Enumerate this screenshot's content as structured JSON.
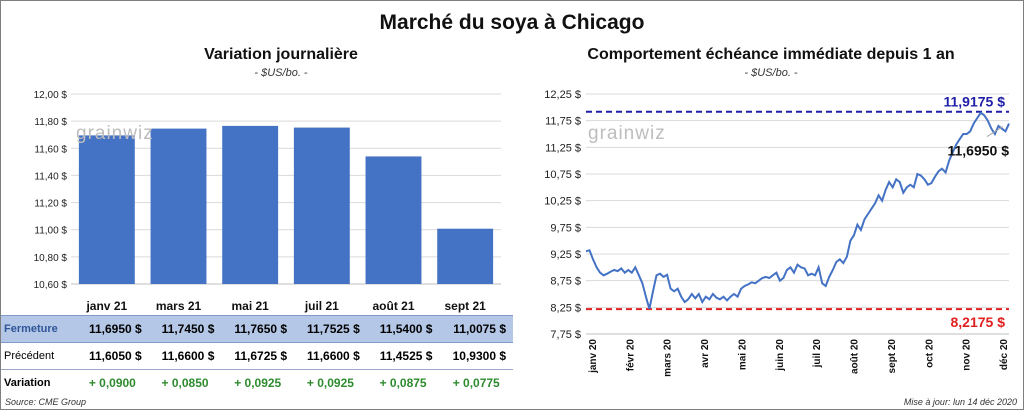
{
  "title": "Marché du soya à Chicago",
  "chart_data": [
    {
      "type": "bar",
      "title": "Variation journalière",
      "subtitle": "- $US/bo. -",
      "categories": [
        "janv 21",
        "mars 21",
        "mai 21",
        "juil 21",
        "août 21",
        "sept 21"
      ],
      "values": [
        11.695,
        11.745,
        11.765,
        11.7525,
        11.54,
        11.0075
      ],
      "ylim": [
        10.6,
        12.0
      ],
      "yticks": [
        "10,60 $",
        "10,80 $",
        "11,00 $",
        "11,20 $",
        "11,40 $",
        "11,60 $",
        "11,80 $",
        "12,00 $"
      ],
      "ytick_values": [
        10.6,
        10.8,
        11.0,
        11.2,
        11.4,
        11.6,
        11.8,
        12.0
      ],
      "bar_color": "#4472c4",
      "grid": true,
      "watermark": "grainwiz"
    },
    {
      "type": "line",
      "title": "Comportement échéance immédiate depuis 1 an",
      "subtitle": "- $US/bo. -",
      "ylim": [
        7.75,
        12.25
      ],
      "yticks": [
        "7,75 $",
        "8,25 $",
        "8,75 $",
        "9,25 $",
        "9,75 $",
        "10,25 $",
        "10,75 $",
        "11,25 $",
        "11,75 $",
        "12,25 $"
      ],
      "ytick_values": [
        7.75,
        8.25,
        8.75,
        9.25,
        9.75,
        10.25,
        10.75,
        11.25,
        11.75,
        12.25
      ],
      "xticks": [
        "janv 20",
        "févr 20",
        "mars 20",
        "avr 20",
        "mai 20",
        "juin 20",
        "juil 20",
        "août 20",
        "sept 20",
        "oct 20",
        "nov 20",
        "déc 20"
      ],
      "x": [
        0,
        2,
        4,
        6,
        8,
        10,
        12,
        14,
        16,
        18,
        20,
        22,
        24,
        26,
        28,
        30,
        32,
        34,
        36,
        38,
        40,
        42,
        44,
        46,
        48,
        50,
        52,
        54,
        56,
        58,
        60,
        62,
        64,
        66,
        68,
        70,
        72,
        74,
        76,
        78,
        80,
        82,
        84,
        86,
        88,
        90,
        92,
        94,
        96,
        98,
        100,
        102,
        104,
        106,
        108,
        110,
        112,
        114,
        116,
        118,
        120,
        122,
        124,
        126,
        128,
        130,
        132,
        134,
        136,
        138,
        140,
        142,
        144,
        146,
        148,
        150,
        152,
        154,
        156,
        158,
        160,
        162,
        164,
        166,
        168,
        170,
        172,
        174,
        176,
        178,
        180,
        182,
        184,
        186,
        188,
        190,
        192,
        194,
        196,
        198,
        200,
        202,
        204,
        206,
        208,
        210,
        212,
        214,
        216,
        218,
        220,
        222,
        224,
        226,
        228,
        230,
        232,
        234,
        236,
        238,
        240
      ],
      "values": [
        9.3,
        9.32,
        9.15,
        9.0,
        8.9,
        8.85,
        8.88,
        8.92,
        8.95,
        8.93,
        8.98,
        8.9,
        8.95,
        8.9,
        9.0,
        8.85,
        8.7,
        8.45,
        8.22,
        8.55,
        8.85,
        8.88,
        8.82,
        8.86,
        8.6,
        8.55,
        8.6,
        8.45,
        8.35,
        8.4,
        8.5,
        8.42,
        8.5,
        8.35,
        8.45,
        8.4,
        8.5,
        8.43,
        8.4,
        8.45,
        8.38,
        8.45,
        8.5,
        8.45,
        8.6,
        8.65,
        8.68,
        8.72,
        8.7,
        8.75,
        8.8,
        8.82,
        8.8,
        8.85,
        8.9,
        8.75,
        8.8,
        8.95,
        9.0,
        8.9,
        9.05,
        9.0,
        8.98,
        8.85,
        8.88,
        8.85,
        9.0,
        8.7,
        8.65,
        8.82,
        8.95,
        9.1,
        9.15,
        9.08,
        9.2,
        9.5,
        9.6,
        9.8,
        9.7,
        9.9,
        10.0,
        10.1,
        10.2,
        10.35,
        10.25,
        10.45,
        10.6,
        10.5,
        10.65,
        10.6,
        10.4,
        10.5,
        10.55,
        10.5,
        10.75,
        10.72,
        10.65,
        10.55,
        10.58,
        10.7,
        10.8,
        10.85,
        10.78,
        11.0,
        11.15,
        11.3,
        11.4,
        11.5,
        11.5,
        11.55,
        11.7,
        11.8,
        11.9,
        11.85,
        11.75,
        11.6,
        11.5,
        11.65,
        11.6,
        11.55,
        11.695
      ],
      "line_color": "#4472c4",
      "reference_lines": [
        {
          "value": 11.9175,
          "label": "11,9175  $",
          "color": "#1f1fa8"
        },
        {
          "value": 8.2175,
          "label": "8,2175  $",
          "color": "#e02020"
        }
      ],
      "last_value_label": "11,6950 $",
      "grid": true,
      "watermark": "grainwiz"
    }
  ],
  "table": {
    "rows": [
      {
        "label": "Fermeture",
        "values": [
          "11,6950  $",
          "11,7450  $",
          "11,7650  $",
          "11,7525  $",
          "11,5400  $",
          "11,0075  $"
        ]
      },
      {
        "label": "Précédent",
        "values": [
          "11,6050  $",
          "11,6600  $",
          "11,6725  $",
          "11,6600  $",
          "11,4525  $",
          "10,9300  $"
        ]
      },
      {
        "label": "Variation",
        "values": [
          "+ 0,0900",
          "+ 0,0850",
          "+ 0,0925",
          "+ 0,0925",
          "+ 0,0875",
          "+ 0,0775"
        ]
      }
    ]
  },
  "footer": {
    "source": "Source: CME Group",
    "updated": "Mise à jour: lun 14 déc 2020"
  }
}
